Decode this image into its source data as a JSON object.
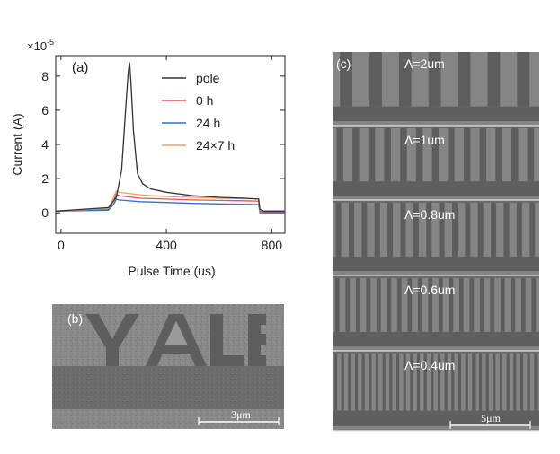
{
  "figure": {
    "panel_a": {
      "label": "(a)",
      "exponent_label": "×10",
      "exponent_power": "-5",
      "ylabel": "Current (A)",
      "xlabel": "Pulse Time (us)"
    },
    "panel_b": {
      "label": "(b)",
      "engraved_text": "YALE",
      "scalebar": "3μm"
    },
    "panel_c": {
      "label": "(c)",
      "scalebar": "5μm",
      "strips": [
        {
          "label": "Λ=2um",
          "period_um": 2
        },
        {
          "label": "Λ=1um",
          "period_um": 1
        },
        {
          "label": "Λ=0.8um",
          "period_um": 0.8
        },
        {
          "label": "Λ=0.6um",
          "period_um": 0.6
        },
        {
          "label": "Λ=0.4um",
          "period_um": 0.4
        }
      ]
    }
  },
  "chart_data": {
    "type": "line",
    "xlabel": "Pulse Time (us)",
    "ylabel": "Current (A)",
    "xlim": [
      -20,
      850
    ],
    "ylim": [
      -1.2,
      9.2
    ],
    "xticks": [
      0,
      400,
      800
    ],
    "yticks": [
      0,
      2,
      4,
      6,
      8
    ],
    "y_multiplier": "1e-5",
    "legend": "top-right",
    "series": [
      {
        "name": "pole",
        "color": "#333333",
        "x": [
          -20,
          180,
          210,
          230,
          245,
          255,
          260,
          265,
          275,
          290,
          310,
          340,
          400,
          500,
          600,
          700,
          750,
          755,
          770,
          850
        ],
        "y": [
          0.1,
          0.3,
          0.9,
          2.5,
          6.0,
          8.2,
          8.8,
          7.8,
          4.8,
          2.3,
          1.7,
          1.4,
          1.2,
          1.0,
          0.9,
          0.85,
          0.8,
          0.2,
          0.1,
          0.1
        ]
      },
      {
        "name": "0 h",
        "color": "#e8505b",
        "x": [
          -20,
          180,
          200,
          210,
          220,
          300,
          400,
          500,
          600,
          700,
          750,
          755,
          770,
          850
        ],
        "y": [
          0.1,
          0.2,
          0.7,
          1.1,
          1.0,
          0.85,
          0.8,
          0.75,
          0.72,
          0.7,
          0.68,
          0.1,
          0.05,
          0.05
        ]
      },
      {
        "name": "24 h",
        "color": "#2e72d2",
        "x": [
          -20,
          180,
          200,
          210,
          220,
          300,
          400,
          500,
          600,
          700,
          750,
          755,
          770,
          850
        ],
        "y": [
          0.1,
          0.15,
          0.5,
          0.8,
          0.75,
          0.65,
          0.6,
          0.55,
          0.52,
          0.5,
          0.48,
          0.0,
          0.0,
          0.0
        ]
      },
      {
        "name": "24×7 h",
        "color": "#f0a060",
        "x": [
          -20,
          180,
          200,
          210,
          220,
          300,
          400,
          500,
          600,
          700,
          750,
          755,
          770,
          850
        ],
        "y": [
          0.1,
          0.25,
          0.9,
          1.3,
          1.2,
          1.05,
          0.95,
          0.9,
          0.85,
          0.82,
          0.8,
          0.15,
          0.1,
          0.1
        ]
      }
    ]
  }
}
